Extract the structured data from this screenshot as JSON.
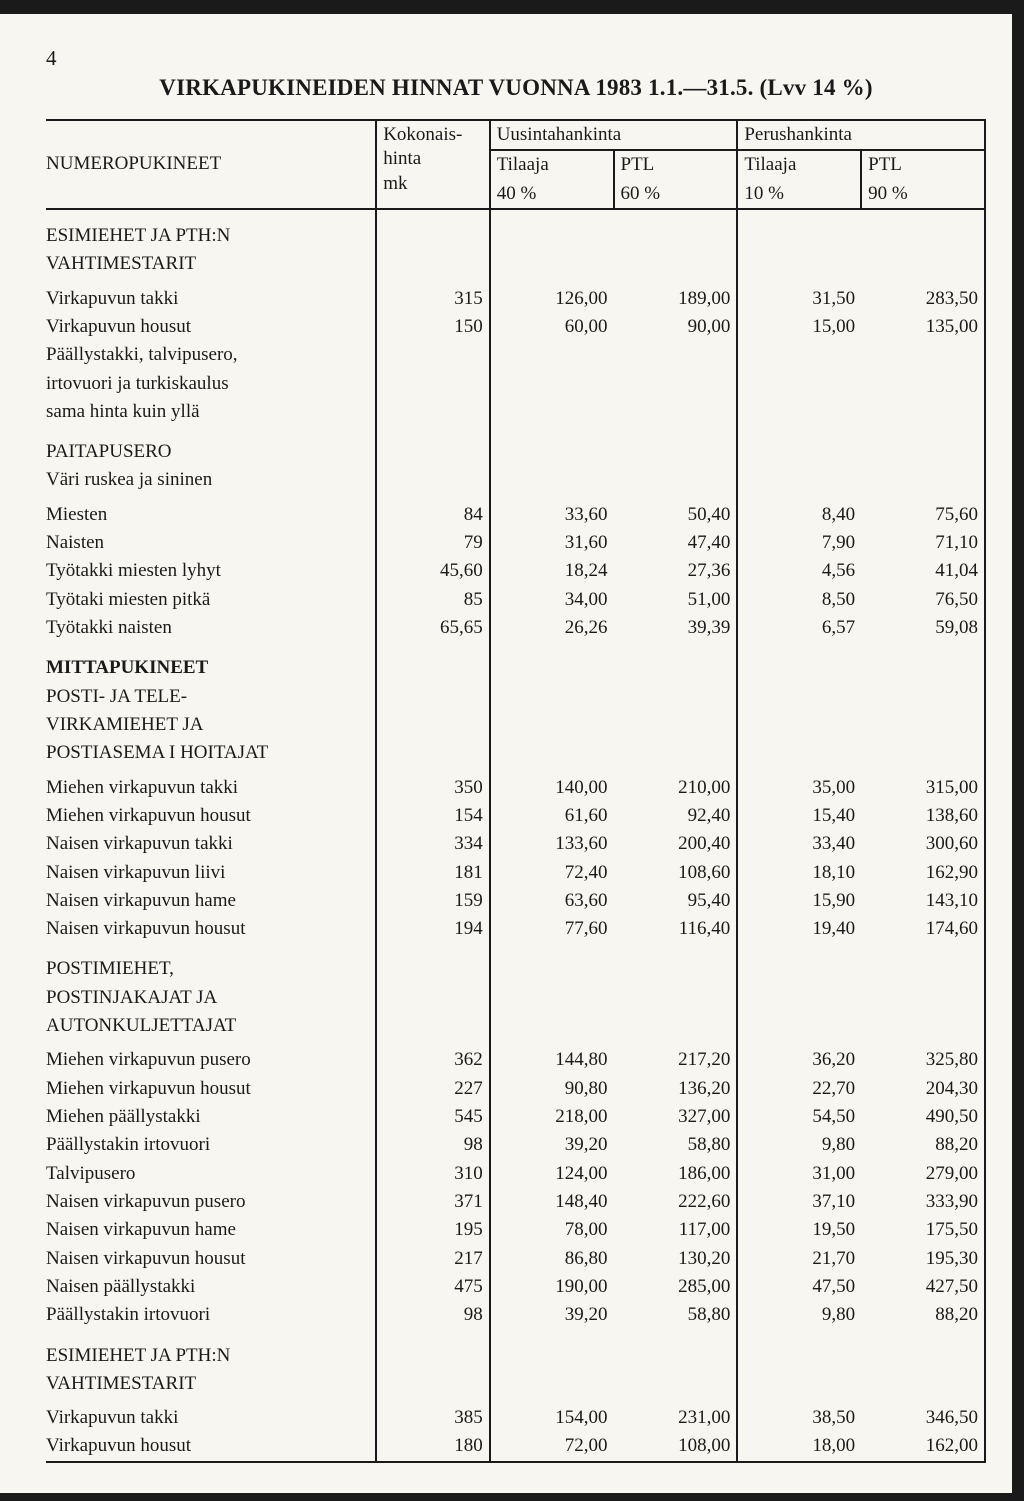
{
  "page_number": "4",
  "title": "VIRKAPUKINEIDEN HINNAT VUONNA 1983 1.1.—31.5. (Lvv 14 %)",
  "header": {
    "row_label": "NUMEROPUKINEET",
    "kokonais_line1": "Kokonais-",
    "kokonais_line2": "hinta",
    "kokonais_line3": "mk",
    "uusinta": "Uusintahankinta",
    "perus": "Perushankinta",
    "tilaaja": "Tilaaja",
    "ptl": "PTL",
    "p40": "40 %",
    "p60": "60 %",
    "p10": "10 %",
    "p90": "90 %"
  },
  "sections": [
    {
      "title_lines": [
        "ESIMIEHET JA PTH:N",
        "VAHTIMESTARIT"
      ],
      "rows": [
        {
          "label": "Virkapuvun takki",
          "c": [
            "315",
            "126,00",
            "189,00",
            "31,50",
            "283,50"
          ]
        },
        {
          "label": "Virkapuvun housut",
          "c": [
            "150",
            "60,00",
            "90,00",
            "15,00",
            "135,00"
          ]
        },
        {
          "label": "Päällystakki, talvipusero,",
          "c": [
            "",
            "",
            "",
            "",
            ""
          ]
        },
        {
          "label": "irtovuori ja turkiskaulus",
          "c": [
            "",
            "",
            "",
            "",
            ""
          ]
        },
        {
          "label": "sama hinta kuin yllä",
          "c": [
            "",
            "",
            "",
            "",
            ""
          ]
        }
      ]
    },
    {
      "title_lines": [
        "PAITAPUSERO",
        "Väri ruskea ja sininen"
      ],
      "rows": [
        {
          "label": "Miesten",
          "c": [
            "84",
            "33,60",
            "50,40",
            "8,40",
            "75,60"
          ]
        },
        {
          "label": "Naisten",
          "c": [
            "79",
            "31,60",
            "47,40",
            "7,90",
            "71,10"
          ]
        },
        {
          "label": "Työtakki miesten lyhyt",
          "c": [
            "45,60",
            "18,24",
            "27,36",
            "4,56",
            "41,04"
          ]
        },
        {
          "label": "Työtaki miesten pitkä",
          "c": [
            "85",
            "34,00",
            "51,00",
            "8,50",
            "76,50"
          ]
        },
        {
          "label": "Työtakki naisten",
          "c": [
            "65,65",
            "26,26",
            "39,39",
            "6,57",
            "59,08"
          ]
        }
      ]
    },
    {
      "bold_title": "MITTAPUKINEET",
      "title_lines": [
        "POSTI- JA TELE-",
        "VIRKAMIEHET JA",
        "POSTIASEMA I HOITAJAT"
      ],
      "rows": [
        {
          "label": "Miehen virkapuvun takki",
          "c": [
            "350",
            "140,00",
            "210,00",
            "35,00",
            "315,00"
          ]
        },
        {
          "label": "Miehen virkapuvun housut",
          "c": [
            "154",
            "61,60",
            "92,40",
            "15,40",
            "138,60"
          ]
        },
        {
          "label": "Naisen virkapuvun takki",
          "c": [
            "334",
            "133,60",
            "200,40",
            "33,40",
            "300,60"
          ]
        },
        {
          "label": "Naisen virkapuvun liivi",
          "c": [
            "181",
            "72,40",
            "108,60",
            "18,10",
            "162,90"
          ]
        },
        {
          "label": "Naisen virkapuvun hame",
          "c": [
            "159",
            "63,60",
            "95,40",
            "15,90",
            "143,10"
          ]
        },
        {
          "label": "Naisen virkapuvun housut",
          "c": [
            "194",
            "77,60",
            "116,40",
            "19,40",
            "174,60"
          ]
        }
      ]
    },
    {
      "title_lines": [
        "POSTIMIEHET,",
        "POSTINJAKAJAT JA",
        "AUTONKULJETTAJAT"
      ],
      "rows": [
        {
          "label": "Miehen virkapuvun pusero",
          "c": [
            "362",
            "144,80",
            "217,20",
            "36,20",
            "325,80"
          ]
        },
        {
          "label": "Miehen virkapuvun housut",
          "c": [
            "227",
            "90,80",
            "136,20",
            "22,70",
            "204,30"
          ]
        },
        {
          "label": "Miehen päällystakki",
          "c": [
            "545",
            "218,00",
            "327,00",
            "54,50",
            "490,50"
          ]
        },
        {
          "label": "Päällystakin irtovuori",
          "c": [
            "98",
            "39,20",
            "58,80",
            "9,80",
            "88,20"
          ]
        },
        {
          "label": "Talvipusero",
          "c": [
            "310",
            "124,00",
            "186,00",
            "31,00",
            "279,00"
          ]
        },
        {
          "label": "Naisen virkapuvun pusero",
          "c": [
            "371",
            "148,40",
            "222,60",
            "37,10",
            "333,90"
          ]
        },
        {
          "label": "Naisen virkapuvun hame",
          "c": [
            "195",
            "78,00",
            "117,00",
            "19,50",
            "175,50"
          ]
        },
        {
          "label": "Naisen virkapuvun housut",
          "c": [
            "217",
            "86,80",
            "130,20",
            "21,70",
            "195,30"
          ]
        },
        {
          "label": "Naisen päällystakki",
          "c": [
            "475",
            "190,00",
            "285,00",
            "47,50",
            "427,50"
          ]
        },
        {
          "label": "Päällystakin irtovuori",
          "c": [
            "98",
            "39,20",
            "58,80",
            "9,80",
            "88,20"
          ]
        }
      ]
    },
    {
      "title_lines": [
        "ESIMIEHET JA PTH:N",
        "VAHTIMESTARIT"
      ],
      "rows": [
        {
          "label": "Virkapuvun takki",
          "c": [
            "385",
            "154,00",
            "231,00",
            "38,50",
            "346,50"
          ]
        },
        {
          "label": "Virkapuvun housut",
          "c": [
            "180",
            "72,00",
            "108,00",
            "18,00",
            "162,00"
          ]
        }
      ],
      "last_bottom": true
    }
  ]
}
